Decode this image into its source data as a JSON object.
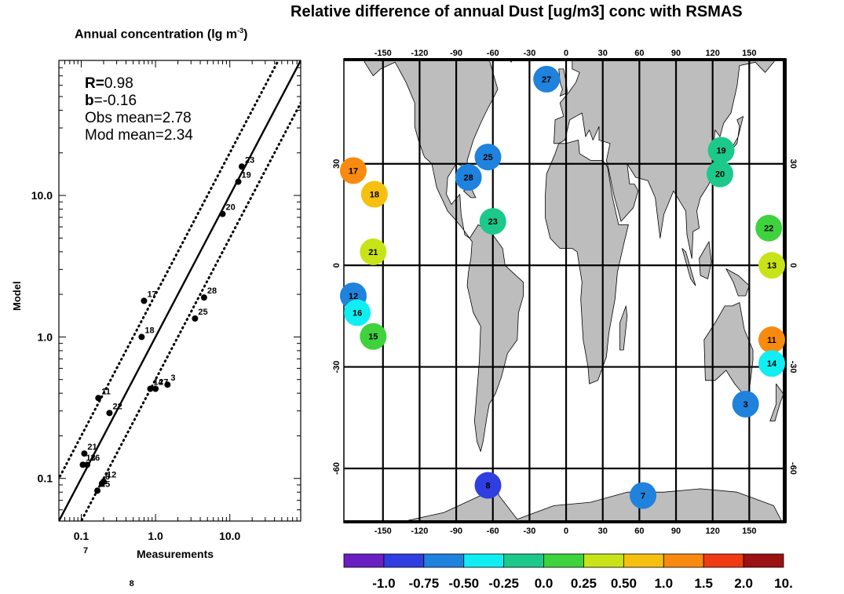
{
  "title": "Relative difference of annual Dust [ug/m3] conc with RSMAS",
  "scatter_title": {
    "text": "Annual concentration (",
    "mu": "lg m",
    "exp": "-3",
    "close": ")"
  },
  "stats": {
    "r_label": "R=",
    "r_value": "0.98",
    "b_label": "b",
    "b_value": "=-0.16",
    "obs_mean": "Obs mean=2.78",
    "mod_mean": "Mod mean=2.34"
  },
  "colors": {
    "bins": [
      "#6a1fc2",
      "#2f3ee0",
      "#1f82dc",
      "#10eef2",
      "#1cc98a",
      "#3ed23c",
      "#c8e418",
      "#f5c010",
      "#f88a10",
      "#f03a12",
      "#9c1111"
    ],
    "land": "#bdbdbd"
  },
  "chart_data": [
    {
      "type": "scatter",
      "title": "Annual concentration (lg m-3)",
      "xlabel": "Measurements",
      "ylabel": "Model",
      "scale": "log-log",
      "xlim": [
        0.05,
        90
      ],
      "ylim": [
        0.05,
        90
      ],
      "x_ticks": [
        "0.1",
        "1.0",
        "10.0"
      ],
      "y_ticks": [
        "0.1",
        "1.0",
        "10.0"
      ],
      "reference_lines": [
        "1:1 solid",
        "2:1 dotted",
        "1:2 dotted"
      ],
      "points": [
        {
          "label": "23",
          "x": 14.5,
          "y": 16
        },
        {
          "label": "19",
          "x": 13.0,
          "y": 12.5
        },
        {
          "label": "20",
          "x": 8.0,
          "y": 7.4
        },
        {
          "label": "28",
          "x": 4.5,
          "y": 1.9
        },
        {
          "label": "25",
          "x": 3.4,
          "y": 1.35
        },
        {
          "label": "17",
          "x": 0.7,
          "y": 1.8
        },
        {
          "label": "18",
          "x": 0.65,
          "y": 1.0
        },
        {
          "label": "11",
          "x": 0.17,
          "y": 0.37
        },
        {
          "label": "14",
          "x": 0.85,
          "y": 0.43
        },
        {
          "label": "27",
          "x": 1.0,
          "y": 0.43
        },
        {
          "label": "3",
          "x": 1.45,
          "y": 0.46
        },
        {
          "label": "22",
          "x": 0.24,
          "y": 0.29
        },
        {
          "label": "21",
          "x": 0.11,
          "y": 0.15
        },
        {
          "label": "13",
          "x": 0.105,
          "y": 0.125
        },
        {
          "label": "16",
          "x": 0.12,
          "y": 0.125
        },
        {
          "label": "12",
          "x": 0.2,
          "y": 0.095
        },
        {
          "label": "6",
          "x": 0.19,
          "y": 0.092
        },
        {
          "label": "15",
          "x": 0.165,
          "y": 0.082
        }
      ],
      "offscale_labels": [
        {
          "label": "7",
          "x": 0.12
        },
        {
          "label": "8",
          "x": 0.5
        }
      ]
    },
    {
      "type": "map",
      "title": "Relative difference of annual Dust [ug/m3] conc with RSMAS",
      "lon_ticks": [
        "-150",
        "-120",
        "-90",
        "-60",
        "-30",
        "0",
        "30",
        "60",
        "90",
        "120",
        "150"
      ],
      "lat_ticks_left": [
        "30",
        "0",
        "-30",
        "-60"
      ],
      "lat_ticks_right": [
        "30",
        "0",
        "-30",
        "-60"
      ],
      "stations": [
        {
          "id": "27",
          "lon": -16,
          "lat": 55,
          "bin": 2
        },
        {
          "id": "17",
          "lon": -176,
          "lat": 28,
          "bin": 8
        },
        {
          "id": "25",
          "lon": -64,
          "lat": 32,
          "bin": 2
        },
        {
          "id": "28",
          "lon": -80,
          "lat": 26,
          "bin": 2
        },
        {
          "id": "18",
          "lon": -157,
          "lat": 21,
          "bin": 7
        },
        {
          "id": "23",
          "lon": -60,
          "lat": 13,
          "bin": 4
        },
        {
          "id": "19",
          "lon": 127,
          "lat": 34,
          "bin": 4
        },
        {
          "id": "20",
          "lon": 126,
          "lat": 27,
          "bin": 4
        },
        {
          "id": "22",
          "lon": 166,
          "lat": 11,
          "bin": 5
        },
        {
          "id": "21",
          "lon": -158,
          "lat": 4,
          "bin": 6
        },
        {
          "id": "13",
          "lon": 173,
          "lat": 0,
          "bin": 6
        },
        {
          "id": "12",
          "lon": -180,
          "lat": -9,
          "bin": 2
        },
        {
          "id": "16",
          "lon": -171,
          "lat": -14,
          "bin": 3
        },
        {
          "id": "15",
          "lon": -158,
          "lat": -21,
          "bin": 5
        },
        {
          "id": "11",
          "lon": 172,
          "lat": -22,
          "bin": 8
        },
        {
          "id": "14",
          "lon": 172,
          "lat": -29,
          "bin": 3
        },
        {
          "id": "3",
          "lon": 147,
          "lat": -41,
          "bin": 2
        },
        {
          "id": "8",
          "lon": -64,
          "lat": -65,
          "bin": 1
        },
        {
          "id": "7",
          "lon": 63,
          "lat": -68,
          "bin": 2
        }
      ]
    },
    {
      "type": "colorbar",
      "tick_labels": [
        "-1.0",
        "-0.75",
        "-0.50",
        "-0.25",
        "0.0",
        "0.25",
        "0.50",
        "1.0",
        "1.5",
        "2.0",
        "10."
      ]
    }
  ]
}
